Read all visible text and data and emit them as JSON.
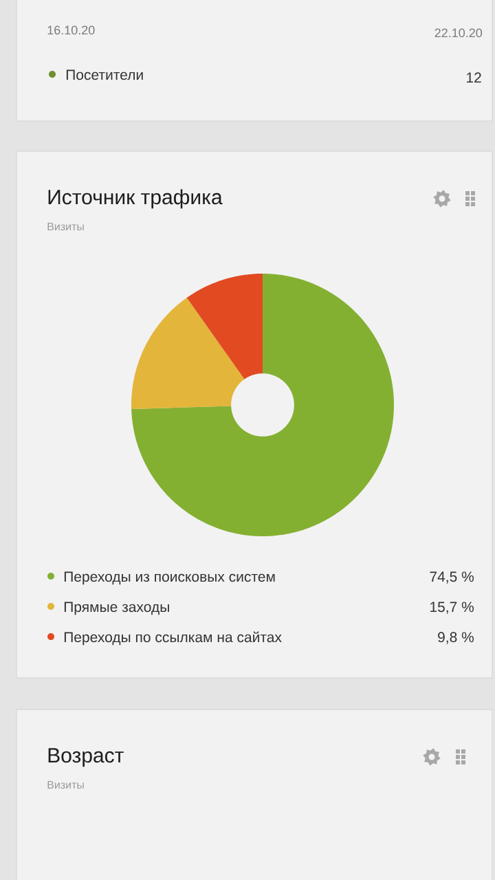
{
  "chart_data": [
    {
      "type": "other",
      "annotations": [
        "16.10.20",
        "22.10.20",
        "Посетители",
        "12"
      ]
    },
    {
      "type": "donut",
      "title": "Источник трафика",
      "subtitle": "Визиты",
      "categories": [
        "Переходы из поисковых систем",
        "Прямые заходы",
        "Переходы по ссылкам на сайтах"
      ],
      "values": [
        74.5,
        15.7,
        9.8
      ],
      "colors": [
        "#84b032",
        "#e3b53a",
        "#e24a22"
      ],
      "value_labels": [
        "74,5 %",
        "15,7 %",
        "9,8 %"
      ],
      "legend": "bottom"
    },
    {
      "type": "other",
      "title": "Возраст",
      "subtitle": "Визиты"
    }
  ]
}
